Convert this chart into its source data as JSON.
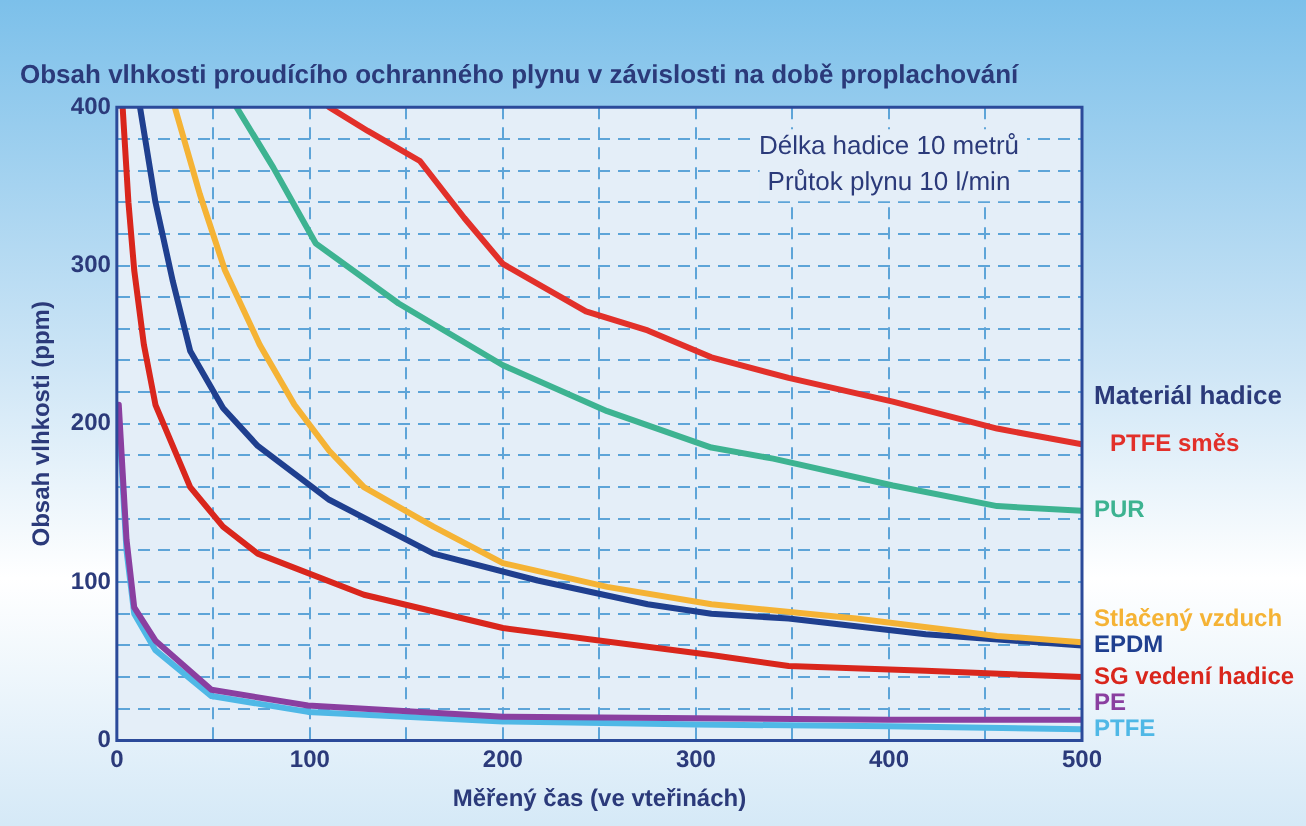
{
  "chart_data": {
    "type": "line",
    "title": "Obsah vlhkosti proudícího ochranného plynu v závislosti na době proplachování",
    "xlabel": "Měřený čas (ve vteřinách)",
    "ylabel": "Obsah vlhkosti (ppm)",
    "legend_title": "Materiál hadice",
    "annotations": [
      "Délka hadice 10 metrů",
      "Průtok plynu 10 l/min"
    ],
    "xlim": [
      0,
      500
    ],
    "ylim": [
      0,
      400
    ],
    "xticks": [
      0,
      {
        "value": 50,
        "label": null
      },
      100,
      {
        "value": 150,
        "label": null
      },
      200,
      {
        "value": 250,
        "label": null
      },
      300,
      {
        "value": 350,
        "label": null
      },
      400,
      {
        "value": 450,
        "label": null
      },
      500
    ],
    "yticks": [
      0,
      {
        "value": 20,
        "label": null
      },
      {
        "value": 40,
        "label": null
      },
      {
        "value": 60,
        "label": null
      },
      {
        "value": 80,
        "label": null
      },
      100,
      {
        "value": 120,
        "label": null
      },
      {
        "value": 140,
        "label": null
      },
      {
        "value": 160,
        "label": null
      },
      {
        "value": 180,
        "label": null
      },
      200,
      {
        "value": 220,
        "label": null
      },
      {
        "value": 240,
        "label": null
      },
      {
        "value": 260,
        "label": null
      },
      {
        "value": 280,
        "label": null
      },
      300,
      {
        "value": 320,
        "label": null
      },
      {
        "value": 340,
        "label": null
      },
      {
        "value": 360,
        "label": null
      },
      {
        "value": 380,
        "label": null
      },
      400
    ],
    "grid": true,
    "legend": "right",
    "marker": "none",
    "line_style": "solid",
    "series": [
      {
        "name": "PTFE směs",
        "color": "#e2302a",
        "x": [
          110,
          130,
          157,
          180,
          200,
          243,
          275,
          308,
          348,
          402,
          456,
          500
        ],
        "values": [
          400,
          385,
          366,
          330,
          301,
          271,
          259,
          242,
          229,
          214,
          197,
          187
        ]
      },
      {
        "name": "PUR",
        "color": "#3db391",
        "x": [
          62,
          81,
          103,
          146,
          200,
          254,
          308,
          340,
          402,
          456,
          500
        ],
        "values": [
          400,
          362,
          314,
          276,
          237,
          208,
          185,
          178,
          161,
          148,
          145
        ]
      },
      {
        "name": "Stlačený vzduch",
        "color": "#f5b335",
        "x": [
          30,
          43,
          56,
          74,
          92,
          110,
          128,
          164,
          200,
          254,
          308,
          383,
          456,
          500
        ],
        "values": [
          400,
          345,
          297,
          250,
          212,
          183,
          160,
          135,
          112,
          97,
          86,
          77,
          66,
          62
        ]
      },
      {
        "name": "EPDM",
        "color": "#1f3f8f",
        "x": [
          12,
          20,
          29,
          38,
          55,
          73,
          110,
          164,
          218,
          275,
          308,
          348,
          419,
          500
        ],
        "values": [
          400,
          340,
          290,
          246,
          210,
          186,
          152,
          118,
          101,
          86,
          80,
          77,
          67,
          60
        ]
      },
      {
        "name": "SG vedení hadice",
        "color": "#d9261c",
        "x": [
          3,
          6,
          9,
          14,
          20,
          38,
          55,
          73,
          128,
          200,
          308,
          348,
          419,
          500
        ],
        "values": [
          400,
          340,
          297,
          250,
          212,
          160,
          135,
          118,
          92,
          71,
          54,
          47,
          44,
          40
        ]
      },
      {
        "name": "PE",
        "color": "#8a3fa0",
        "x": [
          1,
          5,
          9,
          20,
          49,
          99,
          200,
          300,
          400,
          500
        ],
        "values": [
          212,
          127,
          84,
          63,
          32,
          22,
          15,
          14,
          13,
          13
        ]
      },
      {
        "name": "PTFE",
        "color": "#4fb8e6",
        "x": [
          1,
          5,
          9,
          20,
          49,
          99,
          200,
          300,
          400,
          500
        ],
        "values": [
          205,
          120,
          80,
          57,
          28,
          18,
          12,
          10,
          9,
          7
        ]
      }
    ]
  }
}
